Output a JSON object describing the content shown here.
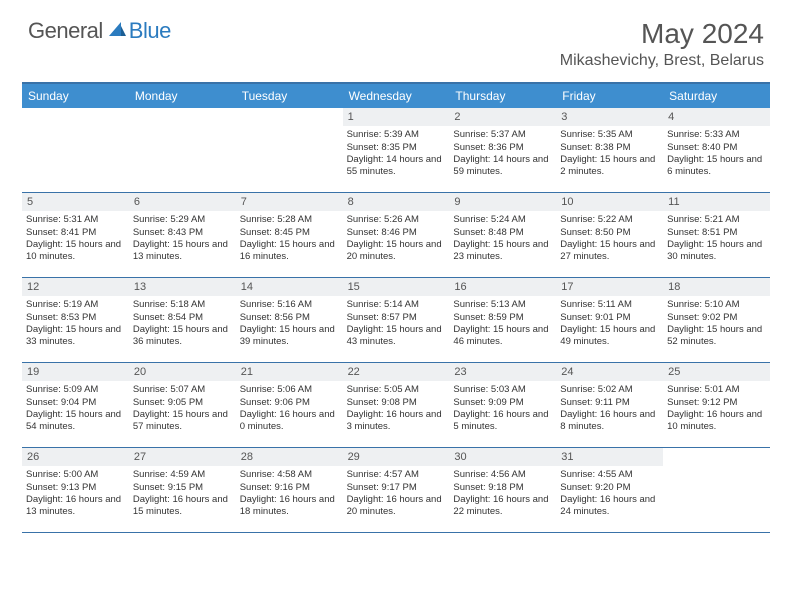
{
  "brand": {
    "part1": "General",
    "part2": "Blue"
  },
  "title": "May 2024",
  "location": "Mikashevichy, Brest, Belarus",
  "colors": {
    "header_blue": "#3e8ecf",
    "border_blue": "#3972a8",
    "daynum_bg": "#eef0f2",
    "text": "#333333",
    "title_text": "#555555"
  },
  "dow": [
    "Sunday",
    "Monday",
    "Tuesday",
    "Wednesday",
    "Thursday",
    "Friday",
    "Saturday"
  ],
  "weeks": [
    [
      {
        "n": "",
        "sr": "",
        "ss": "",
        "dl": ""
      },
      {
        "n": "",
        "sr": "",
        "ss": "",
        "dl": ""
      },
      {
        "n": "",
        "sr": "",
        "ss": "",
        "dl": ""
      },
      {
        "n": "1",
        "sr": "Sunrise: 5:39 AM",
        "ss": "Sunset: 8:35 PM",
        "dl": "Daylight: 14 hours and 55 minutes."
      },
      {
        "n": "2",
        "sr": "Sunrise: 5:37 AM",
        "ss": "Sunset: 8:36 PM",
        "dl": "Daylight: 14 hours and 59 minutes."
      },
      {
        "n": "3",
        "sr": "Sunrise: 5:35 AM",
        "ss": "Sunset: 8:38 PM",
        "dl": "Daylight: 15 hours and 2 minutes."
      },
      {
        "n": "4",
        "sr": "Sunrise: 5:33 AM",
        "ss": "Sunset: 8:40 PM",
        "dl": "Daylight: 15 hours and 6 minutes."
      }
    ],
    [
      {
        "n": "5",
        "sr": "Sunrise: 5:31 AM",
        "ss": "Sunset: 8:41 PM",
        "dl": "Daylight: 15 hours and 10 minutes."
      },
      {
        "n": "6",
        "sr": "Sunrise: 5:29 AM",
        "ss": "Sunset: 8:43 PM",
        "dl": "Daylight: 15 hours and 13 minutes."
      },
      {
        "n": "7",
        "sr": "Sunrise: 5:28 AM",
        "ss": "Sunset: 8:45 PM",
        "dl": "Daylight: 15 hours and 16 minutes."
      },
      {
        "n": "8",
        "sr": "Sunrise: 5:26 AM",
        "ss": "Sunset: 8:46 PM",
        "dl": "Daylight: 15 hours and 20 minutes."
      },
      {
        "n": "9",
        "sr": "Sunrise: 5:24 AM",
        "ss": "Sunset: 8:48 PM",
        "dl": "Daylight: 15 hours and 23 minutes."
      },
      {
        "n": "10",
        "sr": "Sunrise: 5:22 AM",
        "ss": "Sunset: 8:50 PM",
        "dl": "Daylight: 15 hours and 27 minutes."
      },
      {
        "n": "11",
        "sr": "Sunrise: 5:21 AM",
        "ss": "Sunset: 8:51 PM",
        "dl": "Daylight: 15 hours and 30 minutes."
      }
    ],
    [
      {
        "n": "12",
        "sr": "Sunrise: 5:19 AM",
        "ss": "Sunset: 8:53 PM",
        "dl": "Daylight: 15 hours and 33 minutes."
      },
      {
        "n": "13",
        "sr": "Sunrise: 5:18 AM",
        "ss": "Sunset: 8:54 PM",
        "dl": "Daylight: 15 hours and 36 minutes."
      },
      {
        "n": "14",
        "sr": "Sunrise: 5:16 AM",
        "ss": "Sunset: 8:56 PM",
        "dl": "Daylight: 15 hours and 39 minutes."
      },
      {
        "n": "15",
        "sr": "Sunrise: 5:14 AM",
        "ss": "Sunset: 8:57 PM",
        "dl": "Daylight: 15 hours and 43 minutes."
      },
      {
        "n": "16",
        "sr": "Sunrise: 5:13 AM",
        "ss": "Sunset: 8:59 PM",
        "dl": "Daylight: 15 hours and 46 minutes."
      },
      {
        "n": "17",
        "sr": "Sunrise: 5:11 AM",
        "ss": "Sunset: 9:01 PM",
        "dl": "Daylight: 15 hours and 49 minutes."
      },
      {
        "n": "18",
        "sr": "Sunrise: 5:10 AM",
        "ss": "Sunset: 9:02 PM",
        "dl": "Daylight: 15 hours and 52 minutes."
      }
    ],
    [
      {
        "n": "19",
        "sr": "Sunrise: 5:09 AM",
        "ss": "Sunset: 9:04 PM",
        "dl": "Daylight: 15 hours and 54 minutes."
      },
      {
        "n": "20",
        "sr": "Sunrise: 5:07 AM",
        "ss": "Sunset: 9:05 PM",
        "dl": "Daylight: 15 hours and 57 minutes."
      },
      {
        "n": "21",
        "sr": "Sunrise: 5:06 AM",
        "ss": "Sunset: 9:06 PM",
        "dl": "Daylight: 16 hours and 0 minutes."
      },
      {
        "n": "22",
        "sr": "Sunrise: 5:05 AM",
        "ss": "Sunset: 9:08 PM",
        "dl": "Daylight: 16 hours and 3 minutes."
      },
      {
        "n": "23",
        "sr": "Sunrise: 5:03 AM",
        "ss": "Sunset: 9:09 PM",
        "dl": "Daylight: 16 hours and 5 minutes."
      },
      {
        "n": "24",
        "sr": "Sunrise: 5:02 AM",
        "ss": "Sunset: 9:11 PM",
        "dl": "Daylight: 16 hours and 8 minutes."
      },
      {
        "n": "25",
        "sr": "Sunrise: 5:01 AM",
        "ss": "Sunset: 9:12 PM",
        "dl": "Daylight: 16 hours and 10 minutes."
      }
    ],
    [
      {
        "n": "26",
        "sr": "Sunrise: 5:00 AM",
        "ss": "Sunset: 9:13 PM",
        "dl": "Daylight: 16 hours and 13 minutes."
      },
      {
        "n": "27",
        "sr": "Sunrise: 4:59 AM",
        "ss": "Sunset: 9:15 PM",
        "dl": "Daylight: 16 hours and 15 minutes."
      },
      {
        "n": "28",
        "sr": "Sunrise: 4:58 AM",
        "ss": "Sunset: 9:16 PM",
        "dl": "Daylight: 16 hours and 18 minutes."
      },
      {
        "n": "29",
        "sr": "Sunrise: 4:57 AM",
        "ss": "Sunset: 9:17 PM",
        "dl": "Daylight: 16 hours and 20 minutes."
      },
      {
        "n": "30",
        "sr": "Sunrise: 4:56 AM",
        "ss": "Sunset: 9:18 PM",
        "dl": "Daylight: 16 hours and 22 minutes."
      },
      {
        "n": "31",
        "sr": "Sunrise: 4:55 AM",
        "ss": "Sunset: 9:20 PM",
        "dl": "Daylight: 16 hours and 24 minutes."
      },
      {
        "n": "",
        "sr": "",
        "ss": "",
        "dl": ""
      }
    ]
  ]
}
